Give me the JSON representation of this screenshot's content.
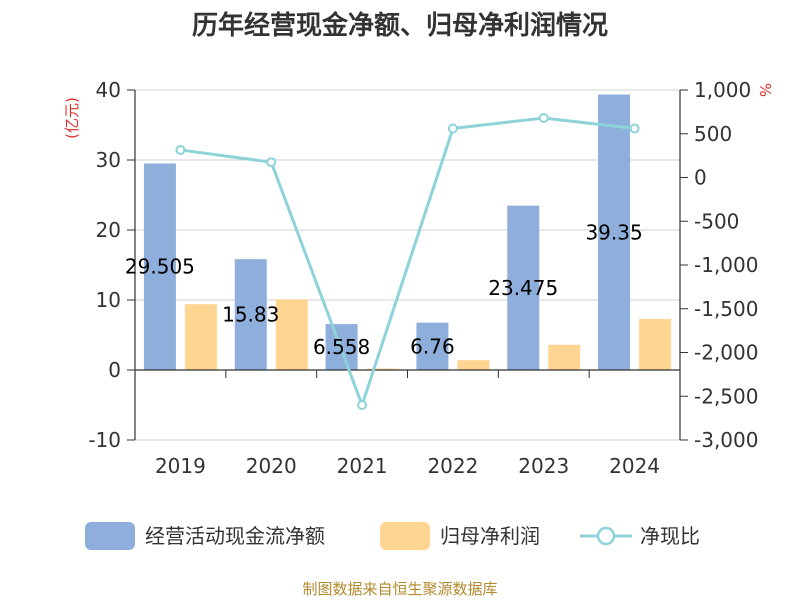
{
  "chart_data": {
    "type": "bar",
    "title": "历年经营现金净额、归母净利润情况",
    "categories": [
      "2019",
      "2020",
      "2021",
      "2022",
      "2023",
      "2024"
    ],
    "series": [
      {
        "name": "经营活动现金流净额",
        "type": "bar",
        "axis": "left",
        "color": "#8eaedc",
        "values": [
          29.505,
          15.83,
          6.558,
          6.76,
          23.475,
          39.35
        ],
        "labels": [
          "29.505",
          "15.83",
          "6.558",
          "6.76",
          "23.475",
          "39.35"
        ]
      },
      {
        "name": "归母净利润",
        "type": "bar",
        "axis": "left",
        "color": "#ffd591",
        "values": [
          9.4,
          10.1,
          0.2,
          1.4,
          3.6,
          7.3
        ]
      },
      {
        "name": "净现比",
        "type": "line",
        "axis": "right",
        "color": "#8dd3d9",
        "values": [
          315,
          175,
          -2600,
          560,
          680,
          560
        ]
      }
    ],
    "y_left": {
      "unit": "(亿元)",
      "min": -10,
      "max": 40,
      "ticks": [
        40,
        30,
        20,
        10,
        0,
        -10
      ],
      "tick_labels": [
        "40",
        "30",
        "20",
        "10",
        "0",
        "-10"
      ]
    },
    "y_right": {
      "unit": "%",
      "min": -3000,
      "max": 1000,
      "ticks": [
        1000,
        500,
        0,
        -500,
        -1000,
        -1500,
        -2000,
        -2500,
        -3000
      ],
      "tick_labels": [
        "1,000",
        "500",
        "0",
        "-500",
        "-1,000",
        "-1,500",
        "-2,000",
        "-2,500",
        "-3,000"
      ]
    },
    "grid": true,
    "legend_position": "bottom"
  },
  "source": "制图数据来自恒生聚源数据库"
}
